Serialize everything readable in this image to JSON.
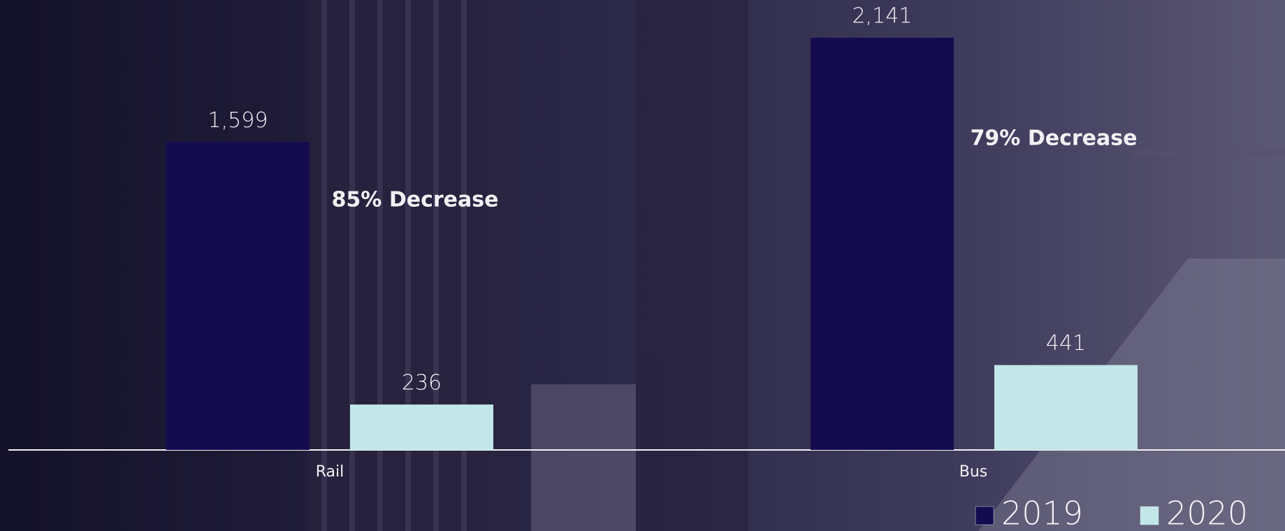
{
  "chart_data": {
    "type": "bar",
    "categories": [
      "Rail",
      "Bus"
    ],
    "series": [
      {
        "name": "2019",
        "color": "#150c50",
        "values": [
          1599,
          2141
        ],
        "value_labels": [
          "1,599",
          "2,141"
        ]
      },
      {
        "name": "2020",
        "color": "#c3e6e8",
        "values": [
          236,
          441
        ],
        "value_labels": [
          "236",
          "441"
        ]
      }
    ],
    "annotations": [
      "85% Decrease",
      "79% Decrease"
    ],
    "legend": "bottom-right"
  }
}
